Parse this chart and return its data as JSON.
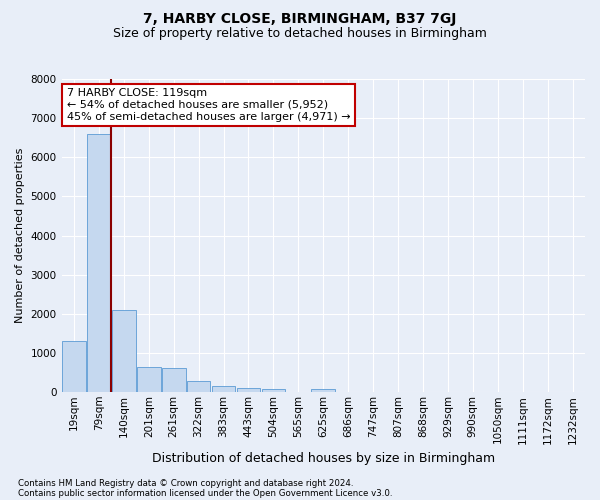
{
  "title": "7, HARBY CLOSE, BIRMINGHAM, B37 7GJ",
  "subtitle": "Size of property relative to detached houses in Birmingham",
  "xlabel": "Distribution of detached houses by size in Birmingham",
  "ylabel": "Number of detached properties",
  "footnote1": "Contains HM Land Registry data © Crown copyright and database right 2024.",
  "footnote2": "Contains public sector information licensed under the Open Government Licence v3.0.",
  "annotation_title": "7 HARBY CLOSE: 119sqm",
  "annotation_line1": "← 54% of detached houses are smaller (5,952)",
  "annotation_line2": "45% of semi-detached houses are larger (4,971) →",
  "categories": [
    "19sqm",
    "79sqm",
    "140sqm",
    "201sqm",
    "261sqm",
    "322sqm",
    "383sqm",
    "443sqm",
    "504sqm",
    "565sqm",
    "625sqm",
    "686sqm",
    "747sqm",
    "807sqm",
    "868sqm",
    "929sqm",
    "990sqm",
    "1050sqm",
    "1111sqm",
    "1172sqm",
    "1232sqm"
  ],
  "values": [
    1300,
    6600,
    2100,
    650,
    620,
    280,
    150,
    100,
    80,
    0,
    80,
    0,
    0,
    0,
    0,
    0,
    0,
    0,
    0,
    0,
    0
  ],
  "bar_color": "#c5d8ef",
  "bar_edge_color": "#5b9bd5",
  "marker_bar_index": 1.5,
  "marker_color": "#8b0000",
  "background_color": "#e8eef8",
  "ylim": [
    0,
    8000
  ],
  "yticks": [
    0,
    1000,
    2000,
    3000,
    4000,
    5000,
    6000,
    7000,
    8000
  ],
  "annotation_box_facecolor": "#ffffff",
  "annotation_box_edgecolor": "#c00000",
  "grid_color": "#ffffff",
  "title_fontsize": 10,
  "subtitle_fontsize": 9,
  "ylabel_fontsize": 8,
  "xlabel_fontsize": 9,
  "tick_fontsize": 7.5,
  "annot_fontsize": 8
}
